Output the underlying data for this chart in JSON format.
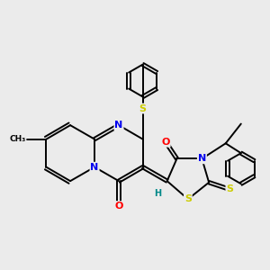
{
  "bg_color": "#ebebeb",
  "bond_color": "#000000",
  "atom_colors": {
    "N": "#0000ee",
    "O": "#ff0000",
    "S": "#cccc00",
    "H": "#008888"
  },
  "bond_lw": 1.4,
  "dbl_off": 0.055
}
